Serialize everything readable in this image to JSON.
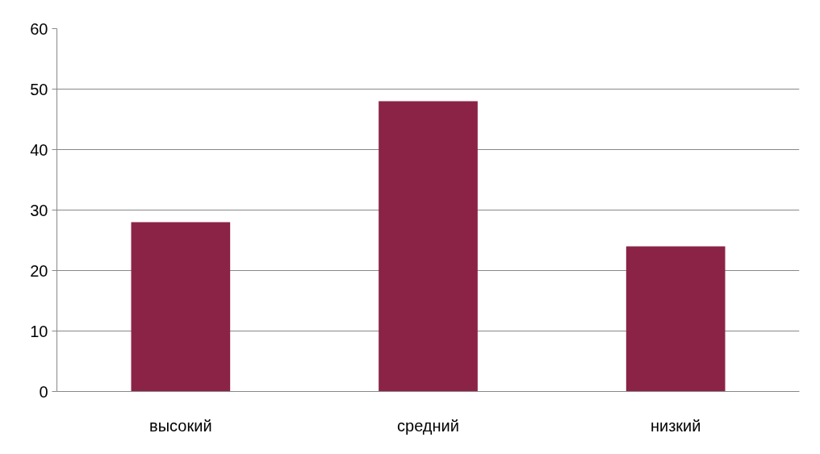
{
  "chart_data": {
    "type": "bar",
    "categories": [
      "высокий",
      "средний",
      "низкий"
    ],
    "values": [
      28,
      48,
      24
    ],
    "color": "#8b2347",
    "ylim": [
      0,
      60
    ],
    "yticks": [
      0,
      10,
      20,
      30,
      40,
      50,
      60
    ],
    "grid": "y"
  }
}
